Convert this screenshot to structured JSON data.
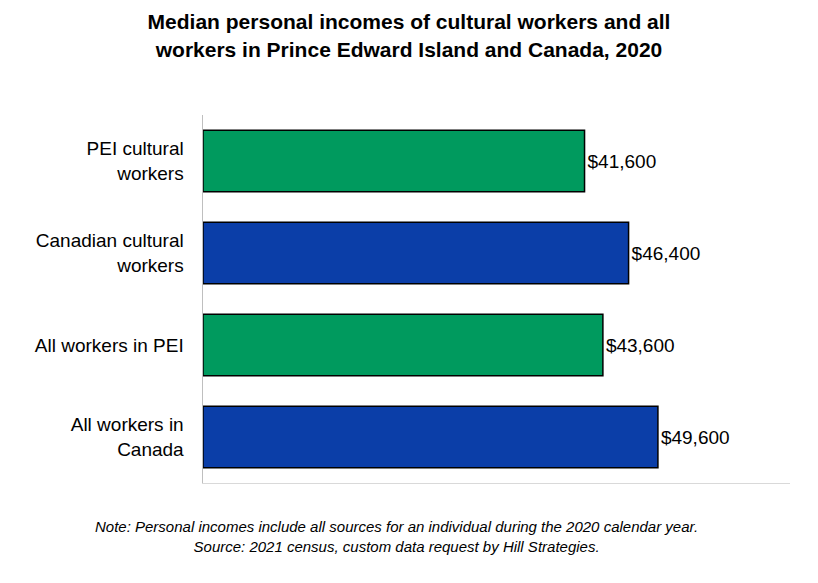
{
  "chart_data": {
    "type": "bar",
    "orientation": "horizontal",
    "title": "Median personal incomes of cultural workers and all workers in Prince Edward Island and Canada, 2020",
    "categories": [
      "PEI cultural workers",
      "Canadian cultural workers",
      "All workers in PEI",
      "All workers in Canada"
    ],
    "values": [
      41600,
      46400,
      43600,
      49600
    ],
    "value_labels": [
      "$41,600",
      "$46,400",
      "$43,600",
      "$49,600"
    ],
    "colors": [
      "#009A5E",
      "#0B3EA8",
      "#009A5E",
      "#0B3EA8"
    ],
    "xlim": [
      0,
      64000
    ],
    "data_labels": true,
    "tick_labels": "y",
    "grid": false,
    "notes": [
      "Note: Personal incomes include all sources for an individual during the 2020 calendar year.",
      "Source: 2021 census, custom data request by Hill Strategies."
    ]
  }
}
